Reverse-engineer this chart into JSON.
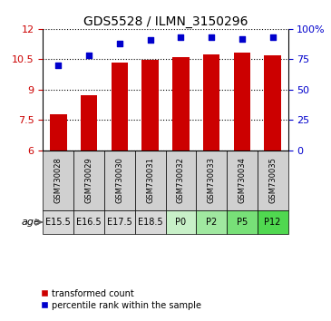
{
  "title": "GDS5528 / ILMN_3150296",
  "samples": [
    "GSM730028",
    "GSM730029",
    "GSM730030",
    "GSM730031",
    "GSM730032",
    "GSM730033",
    "GSM730034",
    "GSM730035"
  ],
  "ages": [
    "E15.5",
    "E16.5",
    "E17.5",
    "E18.5",
    "P0",
    "P2",
    "P5",
    "P12"
  ],
  "age_colors_embryo": "#d8d8d8",
  "age_colors_postnatal": [
    "#c8f0c8",
    "#a0e8a0",
    "#78e078",
    "#50d850"
  ],
  "transformed_count": [
    7.8,
    8.75,
    10.35,
    10.48,
    10.6,
    10.72,
    10.82,
    10.68
  ],
  "percentile_rank": [
    70,
    78,
    88,
    91,
    93,
    93,
    92,
    93
  ],
  "bar_color": "#cc0000",
  "dot_color": "#0000cc",
  "ylim_left": [
    6,
    12
  ],
  "ylim_right": [
    0,
    100
  ],
  "yticks_left": [
    6,
    7.5,
    9,
    10.5,
    12
  ],
  "yticks_right": [
    0,
    25,
    50,
    75,
    100
  ],
  "ytick_labels_right": [
    "0",
    "25",
    "50",
    "75",
    "100%"
  ],
  "legend_bar_label": "transformed count",
  "legend_dot_label": "percentile rank within the sample",
  "age_label": "age",
  "sample_box_color": "#d0d0d0",
  "plot_bg_color": "#ffffff"
}
